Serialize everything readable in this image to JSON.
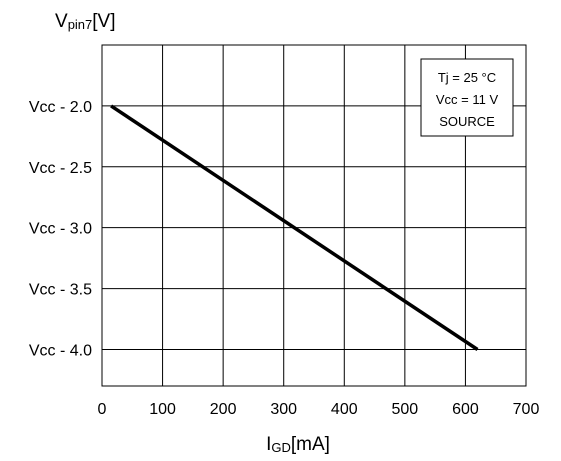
{
  "chart_data": {
    "type": "line",
    "title": "",
    "ylabel": {
      "main": "V",
      "sub": "pin7",
      "unit": "[V]"
    },
    "xlabel": {
      "main": "I",
      "sub": "GD",
      "unit": "[mA]"
    },
    "xlim": [
      0,
      700
    ],
    "ylim": [
      -4.3,
      -1.5
    ],
    "x_ticks": [
      0,
      100,
      200,
      300,
      400,
      500,
      600,
      700
    ],
    "x_tick_labels": [
      "0",
      "100",
      "200",
      "300",
      "400",
      "500",
      "600",
      "700"
    ],
    "y_ticks": [
      -2.0,
      -2.5,
      -3.0,
      -3.5,
      -4.0
    ],
    "y_tick_labels": [
      "Vcc - 2.0",
      "Vcc - 2.5",
      "Vcc - 3.0",
      "Vcc - 3.5",
      "Vcc - 4.0"
    ],
    "grid": true,
    "series": [
      {
        "x": [
          15,
          620
        ],
        "y": [
          -2.0,
          -4.0
        ],
        "color": "#000000"
      }
    ],
    "annotation": {
      "lines": [
        "Tj = 25 °C",
        "Vcc = 11 V",
        "SOURCE"
      ],
      "placement": "top-right"
    }
  }
}
